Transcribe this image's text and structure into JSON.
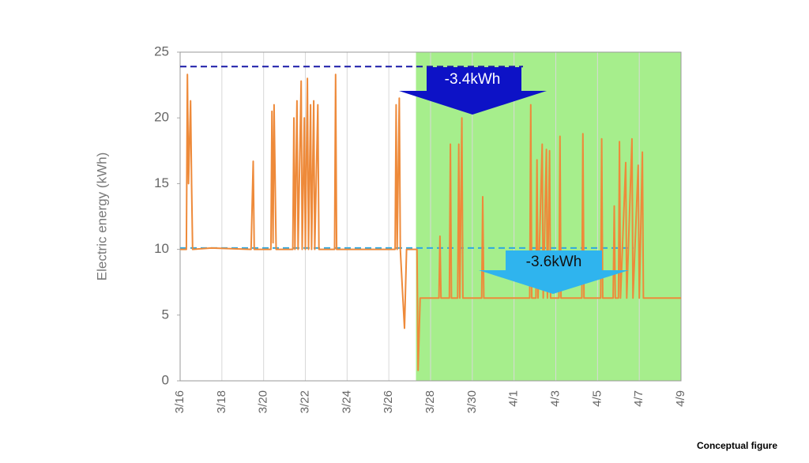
{
  "chart_data": {
    "type": "line",
    "y_label": "Electric energy (kWh)",
    "xlim": [
      0,
      24
    ],
    "xticks": [
      {
        "value": 0,
        "label": "3/16"
      },
      {
        "value": 2,
        "label": "3/18"
      },
      {
        "value": 4,
        "label": "3/20"
      },
      {
        "value": 6,
        "label": "3/22"
      },
      {
        "value": 8,
        "label": "3/24"
      },
      {
        "value": 10,
        "label": "3/26"
      },
      {
        "value": 12,
        "label": "3/28"
      },
      {
        "value": 14,
        "label": "3/30"
      },
      {
        "value": 16,
        "label": "4/1"
      },
      {
        "value": 18,
        "label": "4/3"
      },
      {
        "value": 20,
        "label": "4/5"
      },
      {
        "value": 22,
        "label": "4/7"
      },
      {
        "value": 24,
        "label": "4/9"
      }
    ],
    "ylim": [
      0,
      25
    ],
    "yticks": [
      0,
      5,
      10,
      15,
      20,
      25
    ],
    "grid": "x",
    "highlight_x": [
      11.3,
      24
    ],
    "highlight_color": "#a6ee8c",
    "reference_lines": [
      {
        "value": 23.9,
        "color": "#1a1aa8"
      },
      {
        "value": 10.1,
        "color": "#2ea8e0"
      }
    ],
    "annotations": [
      {
        "text": "-3.4kWh",
        "color": "#0d12c6"
      },
      {
        "text": "-3.6kWh",
        "color": "#2fb4ee"
      }
    ],
    "note": "Conceptual figure",
    "series": [
      {
        "color": "#ee8a3a",
        "x": [
          0,
          0.3,
          0.35,
          0.4,
          0.5,
          0.55,
          0.6,
          1.5,
          3.4,
          3.5,
          3.55,
          4.35,
          4.4,
          4.45,
          4.5,
          4.6,
          5.4,
          5.45,
          5.5,
          5.6,
          5.65,
          5.8,
          5.85,
          5.95,
          6.0,
          6.1,
          6.15,
          6.25,
          6.3,
          6.4,
          6.45,
          6.6,
          6.65,
          6.7,
          7.4,
          7.45,
          7.5,
          10.3,
          10.35,
          10.4,
          10.5,
          10.55,
          10.65,
          10.75,
          10.85,
          11.35,
          11.4,
          11.5,
          12.4,
          12.45,
          12.5,
          12.9,
          12.95,
          13.0,
          13.3,
          13.35,
          13.4,
          13.5,
          13.55,
          14.45,
          14.5,
          14.55,
          16.75,
          16.8,
          16.85,
          17.05,
          17.1,
          17.15,
          17.35,
          17.4,
          17.55,
          17.6,
          17.7,
          17.75,
          18.15,
          18.2,
          18.25,
          19.25,
          19.3,
          19.35,
          20.15,
          20.2,
          20.25,
          20.75,
          20.8,
          20.85,
          21.0,
          21.05,
          21.1,
          21.35,
          21.4,
          21.65,
          21.7,
          21.95,
          22.0,
          22.15,
          22.2,
          24
        ],
        "values": [
          10,
          10,
          23.3,
          15,
          21.3,
          15,
          10,
          10.1,
          10,
          16.7,
          10,
          10,
          20.5,
          10.5,
          21,
          10,
          10,
          20,
          10,
          21.3,
          10,
          22.8,
          10,
          20,
          10,
          23,
          10,
          21,
          10,
          21.3,
          10,
          21,
          10,
          10,
          10,
          23.3,
          10,
          10,
          21,
          10,
          21.5,
          10,
          7,
          4,
          10,
          10,
          0.8,
          6.3,
          6.3,
          11,
          6.3,
          6.3,
          18,
          6.3,
          6.3,
          18,
          6.3,
          20,
          6.3,
          6.3,
          14,
          6.3,
          6.3,
          21,
          6.3,
          6.3,
          16.8,
          6.3,
          18,
          6.3,
          17.6,
          6.3,
          17.5,
          6.3,
          6.3,
          18.6,
          6.3,
          6.3,
          18.8,
          6.3,
          6.3,
          18.4,
          6.3,
          6.3,
          13.3,
          6.3,
          6.3,
          18.2,
          6.3,
          16.6,
          6.3,
          18.4,
          6.3,
          16.4,
          6.3,
          17.4,
          6.3,
          6.3
        ]
      }
    ]
  }
}
